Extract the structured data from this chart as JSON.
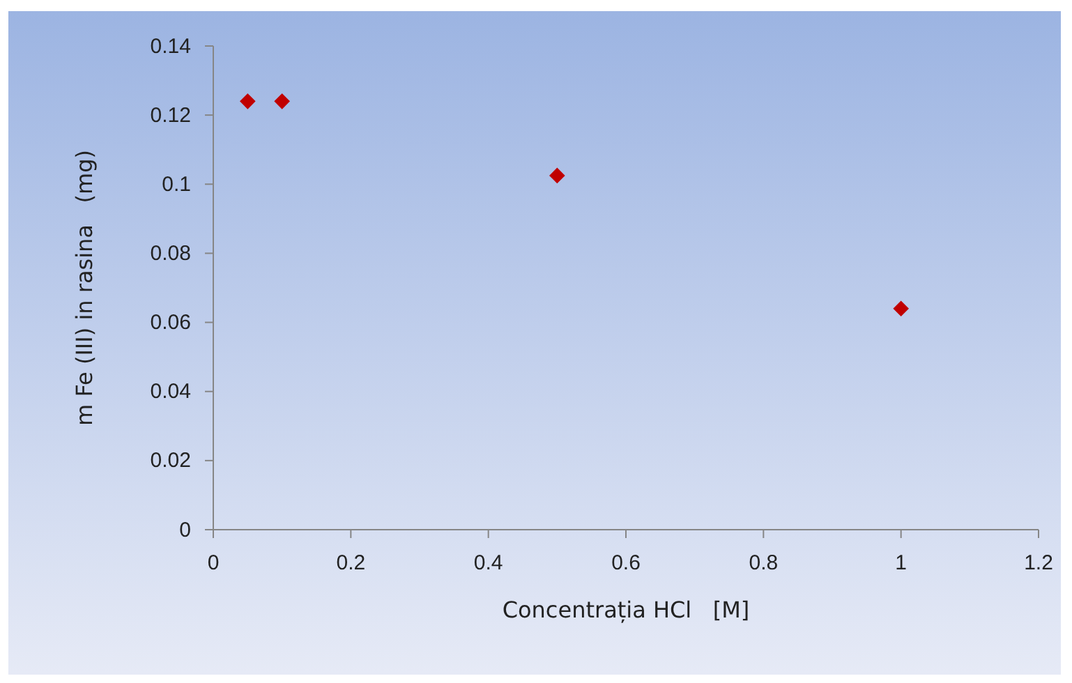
{
  "chart_data": {
    "type": "scatter",
    "xlabel": "Concentrația HCl   [M]",
    "ylabel": "m Fe (III) in rasina   (mg)",
    "x": [
      0.05,
      0.1,
      0.5,
      1
    ],
    "series": [
      {
        "color": "#c00000",
        "values": [
          0.124,
          0.124,
          0.1025,
          0.064
        ]
      }
    ],
    "marker": "diamond",
    "grid": false,
    "xlim": [
      0,
      1.2
    ],
    "xticks": [
      0,
      0.2,
      0.4,
      0.6,
      0.8,
      1,
      1.2
    ],
    "ylim": [
      0,
      0.14
    ],
    "yticks": [
      0,
      0.02,
      0.04,
      0.06,
      0.08,
      0.1,
      0.12,
      0.14
    ]
  }
}
